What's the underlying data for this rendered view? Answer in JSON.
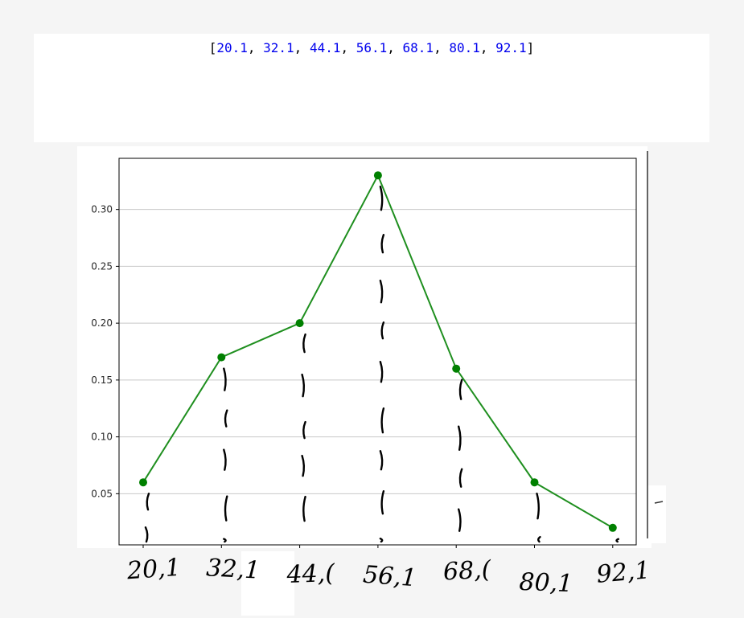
{
  "code_output": {
    "open_bracket": "[",
    "close_bracket": "]",
    "separator": ", ",
    "values": [
      "20.1",
      "32.1",
      "44.1",
      "56.1",
      "68.1",
      "80.1",
      "92.1"
    ]
  },
  "chart_data": {
    "type": "line",
    "title": "",
    "xlabel": "",
    "ylabel": "",
    "x": [
      20.1,
      32.1,
      44.1,
      56.1,
      68.1,
      80.1,
      92.1
    ],
    "series": [
      {
        "values": [
          0.06,
          0.17,
          0.2,
          0.33,
          0.16,
          0.06,
          0.02
        ],
        "color": "#008000"
      }
    ],
    "yticks": [
      "0.05",
      "0.10",
      "0.15",
      "0.20",
      "0.25",
      "0.30"
    ],
    "ylim": [
      0.005,
      0.345
    ],
    "grid": "horizontal",
    "handwritten_xlabels": [
      "20,1",
      "32,1",
      "44,(",
      "56,1",
      "68,(",
      "80,1",
      "92,1"
    ],
    "colors": {
      "line": "#1f8f1f",
      "marker": "#008000",
      "grid": "#c8c8c8",
      "ink": "#000000"
    }
  }
}
